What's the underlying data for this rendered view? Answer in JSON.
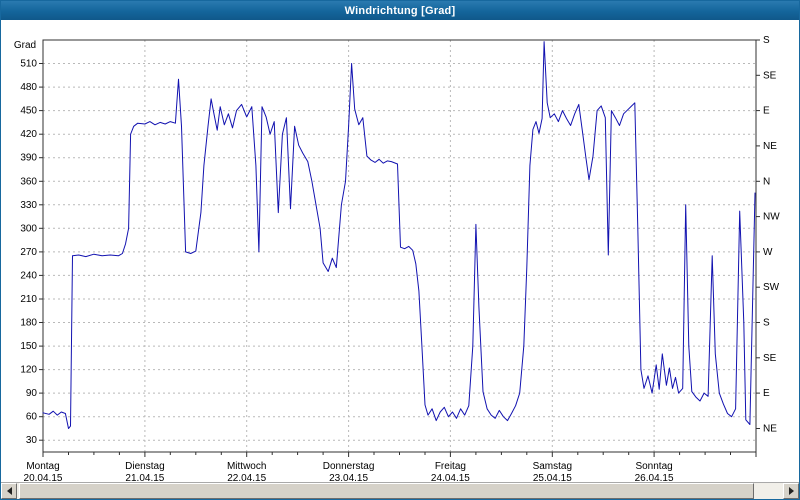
{
  "window": {
    "title": "Windrichtung [Grad]"
  },
  "chart_data": {
    "type": "line",
    "title": "Windrichtung [Grad]",
    "ylabel": "Grad",
    "ylim": [
      15,
      540
    ],
    "xlim_days": [
      0,
      7
    ],
    "grid": true,
    "y_ticks": [
      30,
      60,
      90,
      120,
      150,
      180,
      210,
      240,
      270,
      300,
      330,
      360,
      390,
      420,
      450,
      480,
      510
    ],
    "right_axis": [
      {
        "deg": 540,
        "label": "S"
      },
      {
        "deg": 495,
        "label": "SE"
      },
      {
        "deg": 450,
        "label": "E"
      },
      {
        "deg": 405,
        "label": "NE"
      },
      {
        "deg": 360,
        "label": "N"
      },
      {
        "deg": 315,
        "label": "NW"
      },
      {
        "deg": 270,
        "label": "W"
      },
      {
        "deg": 225,
        "label": "SW"
      },
      {
        "deg": 180,
        "label": "S"
      },
      {
        "deg": 135,
        "label": "SE"
      },
      {
        "deg": 90,
        "label": "E"
      },
      {
        "deg": 45,
        "label": "NE"
      }
    ],
    "days": [
      {
        "name": "Montag",
        "date": "20.04.15"
      },
      {
        "name": "Dienstag",
        "date": "21.04.15"
      },
      {
        "name": "Mittwoch",
        "date": "22.04.15"
      },
      {
        "name": "Donnerstag",
        "date": "23.04.15"
      },
      {
        "name": "Freitag",
        "date": "24.04.15"
      },
      {
        "name": "Samstag",
        "date": "25.04.15"
      },
      {
        "name": "Sonntag",
        "date": "26.04.15"
      }
    ],
    "series": [
      {
        "name": "Windrichtung",
        "color": "#1212b0",
        "points": [
          [
            0.0,
            65
          ],
          [
            0.06,
            63
          ],
          [
            0.1,
            67
          ],
          [
            0.14,
            62
          ],
          [
            0.18,
            66
          ],
          [
            0.22,
            64
          ],
          [
            0.25,
            45
          ],
          [
            0.27,
            48
          ],
          [
            0.29,
            265
          ],
          [
            0.35,
            266
          ],
          [
            0.42,
            264
          ],
          [
            0.5,
            267
          ],
          [
            0.58,
            265
          ],
          [
            0.66,
            266
          ],
          [
            0.74,
            265
          ],
          [
            0.78,
            268
          ],
          [
            0.81,
            280
          ],
          [
            0.84,
            300
          ],
          [
            0.86,
            420
          ],
          [
            0.89,
            430
          ],
          [
            0.93,
            434
          ],
          [
            1.0,
            433
          ],
          [
            1.05,
            436
          ],
          [
            1.1,
            432
          ],
          [
            1.15,
            435
          ],
          [
            1.2,
            433
          ],
          [
            1.25,
            436
          ],
          [
            1.3,
            434
          ],
          [
            1.33,
            490
          ],
          [
            1.36,
            430
          ],
          [
            1.4,
            270
          ],
          [
            1.45,
            268
          ],
          [
            1.5,
            271
          ],
          [
            1.55,
            320
          ],
          [
            1.58,
            380
          ],
          [
            1.62,
            430
          ],
          [
            1.65,
            465
          ],
          [
            1.68,
            445
          ],
          [
            1.71,
            425
          ],
          [
            1.74,
            455
          ],
          [
            1.78,
            432
          ],
          [
            1.82,
            446
          ],
          [
            1.86,
            428
          ],
          [
            1.9,
            450
          ],
          [
            1.95,
            458
          ],
          [
            2.0,
            442
          ],
          [
            2.05,
            455
          ],
          [
            2.09,
            380
          ],
          [
            2.12,
            270
          ],
          [
            2.15,
            455
          ],
          [
            2.19,
            442
          ],
          [
            2.23,
            420
          ],
          [
            2.27,
            436
          ],
          [
            2.31,
            320
          ],
          [
            2.35,
            420
          ],
          [
            2.39,
            441
          ],
          [
            2.43,
            325
          ],
          [
            2.47,
            430
          ],
          [
            2.51,
            406
          ],
          [
            2.55,
            396
          ],
          [
            2.6,
            385
          ],
          [
            2.64,
            360
          ],
          [
            2.68,
            330
          ],
          [
            2.72,
            300
          ],
          [
            2.75,
            256
          ],
          [
            2.8,
            245
          ],
          [
            2.84,
            262
          ],
          [
            2.88,
            250
          ],
          [
            2.93,
            330
          ],
          [
            2.97,
            360
          ],
          [
            3.0,
            430
          ],
          [
            3.03,
            510
          ],
          [
            3.06,
            452
          ],
          [
            3.1,
            432
          ],
          [
            3.14,
            441
          ],
          [
            3.18,
            392
          ],
          [
            3.22,
            387
          ],
          [
            3.26,
            384
          ],
          [
            3.3,
            388
          ],
          [
            3.34,
            383
          ],
          [
            3.38,
            386
          ],
          [
            3.42,
            385
          ],
          [
            3.48,
            382
          ],
          [
            3.51,
            276
          ],
          [
            3.55,
            274
          ],
          [
            3.59,
            277
          ],
          [
            3.63,
            272
          ],
          [
            3.66,
            255
          ],
          [
            3.69,
            220
          ],
          [
            3.72,
            150
          ],
          [
            3.75,
            75
          ],
          [
            3.78,
            62
          ],
          [
            3.82,
            70
          ],
          [
            3.86,
            55
          ],
          [
            3.9,
            66
          ],
          [
            3.94,
            72
          ],
          [
            3.98,
            60
          ],
          [
            4.02,
            66
          ],
          [
            4.06,
            58
          ],
          [
            4.1,
            70
          ],
          [
            4.14,
            62
          ],
          [
            4.18,
            74
          ],
          [
            4.22,
            150
          ],
          [
            4.25,
            305
          ],
          [
            4.28,
            200
          ],
          [
            4.32,
            92
          ],
          [
            4.36,
            70
          ],
          [
            4.4,
            62
          ],
          [
            4.44,
            58
          ],
          [
            4.48,
            68
          ],
          [
            4.52,
            60
          ],
          [
            4.56,
            55
          ],
          [
            4.6,
            64
          ],
          [
            4.64,
            74
          ],
          [
            4.68,
            90
          ],
          [
            4.72,
            150
          ],
          [
            4.75,
            250
          ],
          [
            4.78,
            380
          ],
          [
            4.81,
            426
          ],
          [
            4.84,
            436
          ],
          [
            4.87,
            421
          ],
          [
            4.9,
            440
          ],
          [
            4.92,
            538
          ],
          [
            4.95,
            460
          ],
          [
            4.98,
            441
          ],
          [
            5.02,
            446
          ],
          [
            5.06,
            436
          ],
          [
            5.1,
            450
          ],
          [
            5.14,
            440
          ],
          [
            5.18,
            431
          ],
          [
            5.22,
            446
          ],
          [
            5.26,
            458
          ],
          [
            5.3,
            420
          ],
          [
            5.33,
            390
          ],
          [
            5.36,
            362
          ],
          [
            5.4,
            392
          ],
          [
            5.44,
            450
          ],
          [
            5.48,
            456
          ],
          [
            5.52,
            441
          ],
          [
            5.55,
            266
          ],
          [
            5.58,
            450
          ],
          [
            5.62,
            441
          ],
          [
            5.66,
            431
          ],
          [
            5.7,
            446
          ],
          [
            5.74,
            451
          ],
          [
            5.78,
            456
          ],
          [
            5.81,
            460
          ],
          [
            5.84,
            300
          ],
          [
            5.87,
            120
          ],
          [
            5.9,
            96
          ],
          [
            5.94,
            112
          ],
          [
            5.98,
            90
          ],
          [
            6.02,
            126
          ],
          [
            6.05,
            95
          ],
          [
            6.08,
            140
          ],
          [
            6.12,
            100
          ],
          [
            6.15,
            122
          ],
          [
            6.18,
            96
          ],
          [
            6.21,
            110
          ],
          [
            6.24,
            90
          ],
          [
            6.28,
            96
          ],
          [
            6.31,
            330
          ],
          [
            6.34,
            150
          ],
          [
            6.37,
            92
          ],
          [
            6.41,
            85
          ],
          [
            6.45,
            80
          ],
          [
            6.49,
            90
          ],
          [
            6.53,
            86
          ],
          [
            6.57,
            265
          ],
          [
            6.6,
            140
          ],
          [
            6.64,
            90
          ],
          [
            6.68,
            76
          ],
          [
            6.72,
            64
          ],
          [
            6.76,
            60
          ],
          [
            6.8,
            70
          ],
          [
            6.84,
            322
          ],
          [
            6.88,
            180
          ],
          [
            6.9,
            56
          ],
          [
            6.94,
            50
          ],
          [
            6.99,
            345
          ]
        ]
      }
    ]
  }
}
